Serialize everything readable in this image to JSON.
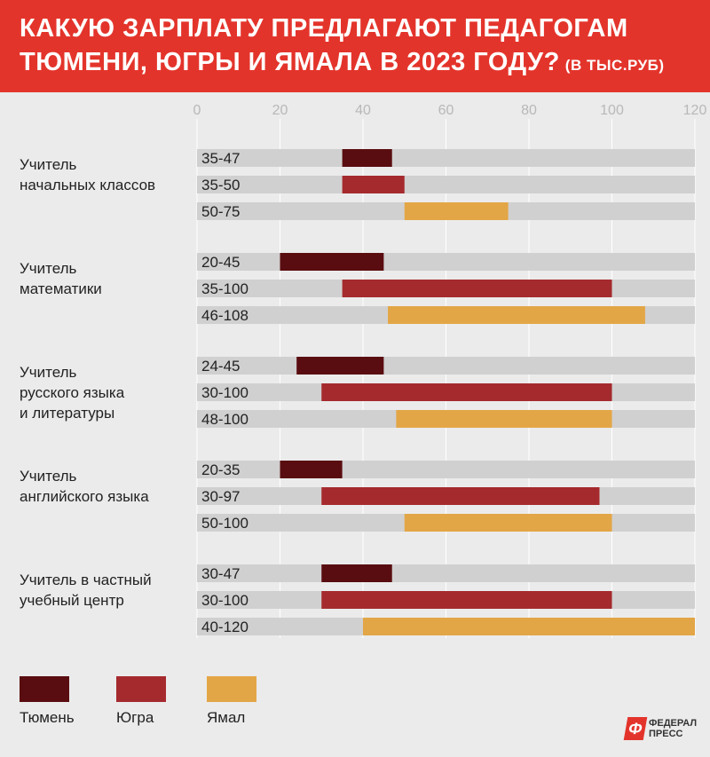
{
  "header": {
    "title_line1": "КАКУЮ ЗАРПЛАТУ ПРЕДЛАГАЮТ ПЕДАГОГАМ",
    "title_line2": "ТЮМЕНИ, ЮГРЫ И ЯМАЛА В 2023 ГОДУ?",
    "subtitle": "(В ТЫС.РУБ)"
  },
  "colors": {
    "header_bg": "#e3342b",
    "tyumen": "#5a0d10",
    "yugra": "#a52a2e",
    "yamal": "#e3a646",
    "track": "#d0d0d0"
  },
  "chart_data": {
    "type": "bar",
    "orientation": "horizontal-range",
    "xlim": [
      0,
      120
    ],
    "x_ticks": [
      "0",
      "20",
      "40",
      "60",
      "80",
      "100",
      "120"
    ],
    "grid": true,
    "legend_position": "bottom-left",
    "series_names": [
      "Тюмень",
      "Югра",
      "Ямал"
    ],
    "groups": [
      {
        "label": [
          "Учитель",
          "начальных классов"
        ],
        "bars": [
          {
            "series": "Тюмень",
            "min": 35,
            "max": 47,
            "label": "35-47"
          },
          {
            "series": "Югра",
            "min": 35,
            "max": 50,
            "label": "35-50"
          },
          {
            "series": "Ямал",
            "min": 50,
            "max": 75,
            "label": "50-75"
          }
        ]
      },
      {
        "label": [
          "Учитель",
          "математики"
        ],
        "bars": [
          {
            "series": "Тюмень",
            "min": 20,
            "max": 45,
            "label": "20-45"
          },
          {
            "series": "Югра",
            "min": 35,
            "max": 100,
            "label": "35-100"
          },
          {
            "series": "Ямал",
            "min": 46,
            "max": 108,
            "label": "46-108"
          }
        ]
      },
      {
        "label": [
          "Учитель",
          "русского языка",
          "и литературы"
        ],
        "bars": [
          {
            "series": "Тюмень",
            "min": 24,
            "max": 45,
            "label": "24-45"
          },
          {
            "series": "Югра",
            "min": 30,
            "max": 100,
            "label": "30-100"
          },
          {
            "series": "Ямал",
            "min": 48,
            "max": 100,
            "label": "48-100"
          }
        ]
      },
      {
        "label": [
          "Учитель",
          "английского языка"
        ],
        "bars": [
          {
            "series": "Тюмень",
            "min": 20,
            "max": 35,
            "label": "20-35"
          },
          {
            "series": "Югра",
            "min": 30,
            "max": 97,
            "label": "30-97"
          },
          {
            "series": "Ямал",
            "min": 50,
            "max": 100,
            "label": "50-100"
          }
        ]
      },
      {
        "label": [
          "Учитель в частный",
          "учебный центр"
        ],
        "bars": [
          {
            "series": "Тюмень",
            "min": 30,
            "max": 47,
            "label": "30-47"
          },
          {
            "series": "Югра",
            "min": 30,
            "max": 100,
            "label": "30-100"
          },
          {
            "series": "Ямал",
            "min": 40,
            "max": 120,
            "label": "40-120"
          }
        ]
      }
    ]
  },
  "legend": {
    "tyumen_label": "Тюмень",
    "yugra_label": "Югра",
    "yamal_label": "Ямал"
  },
  "logo": {
    "mark": "Ф",
    "line1": "ФЕДЕРАЛ",
    "line2": "ПРЕСС"
  }
}
